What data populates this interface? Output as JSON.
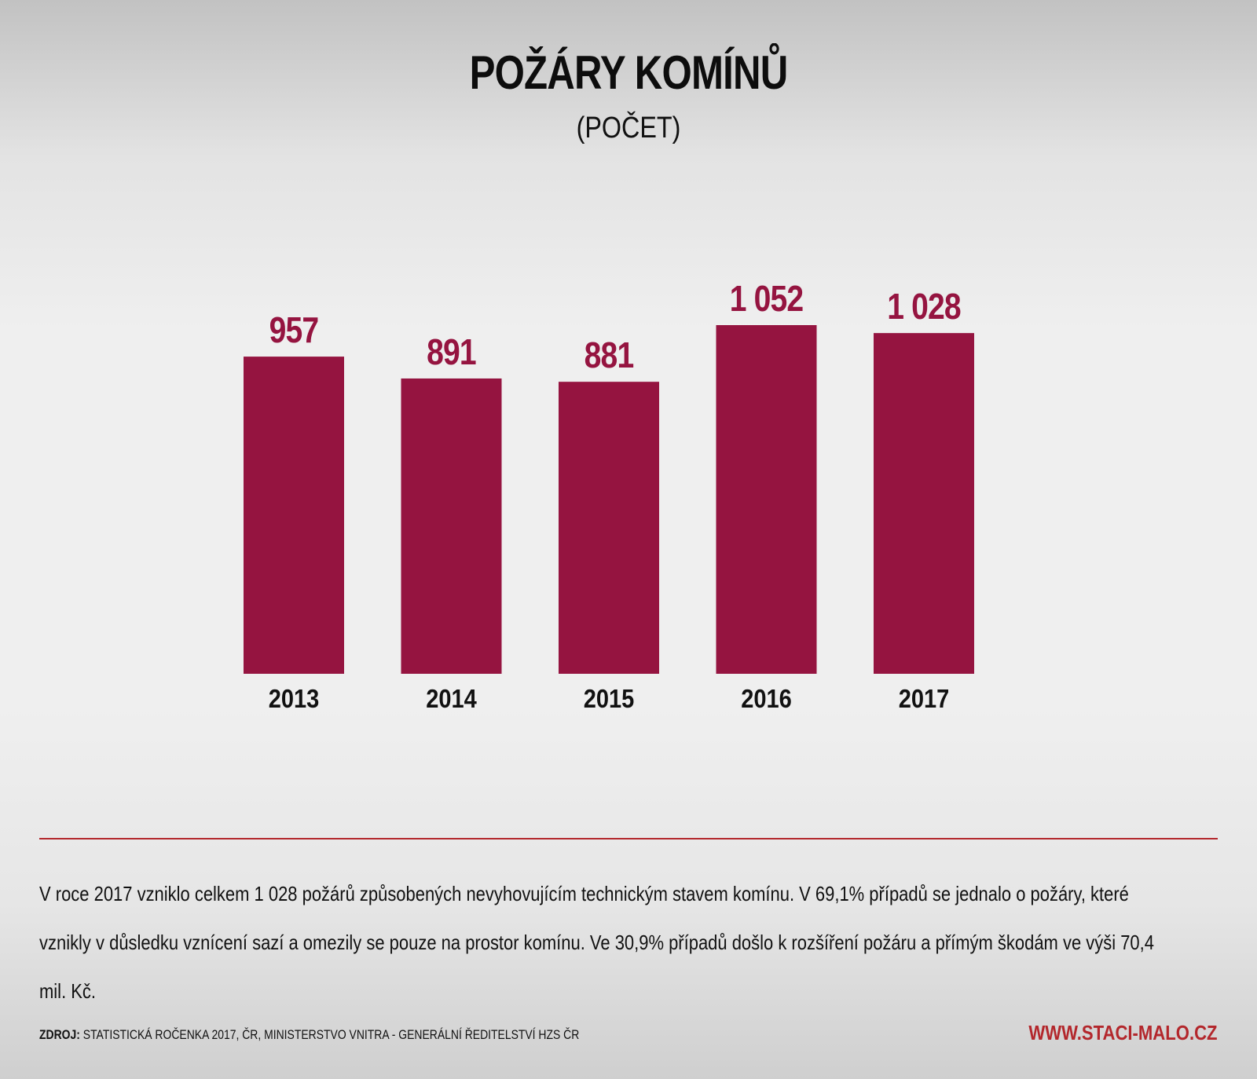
{
  "header": {
    "title": "POŽÁRY KOMÍNŮ",
    "subtitle": "(POČET)"
  },
  "chart_data": {
    "type": "bar",
    "title": "POŽÁRY KOMÍNŮ",
    "subtitle": "(POČET)",
    "categories": [
      "2013",
      "2014",
      "2015",
      "2016",
      "2017"
    ],
    "values": [
      957,
      891,
      881,
      1052,
      1028
    ],
    "value_labels": [
      "957",
      "891",
      "881",
      "1 052",
      "1 028"
    ],
    "xlabel": "",
    "ylabel": "",
    "grid": false,
    "legend": "none",
    "bar_color": "#951440",
    "label_color": "#951440"
  },
  "description": {
    "lines": [
      "V roce 2017 vzniklo celkem 1 028 požárů způsobených nevyhovujícím technickým stavem komínu. V 69,1% případů se jednalo o požáry, které",
      "vznikly v důsledku vznícení sazí a omezily se pouze na prostor komínu. Ve 30,9% případů došlo k rozšíření požáru a přímým škodám ve výši 70,4",
      "mil. Kč."
    ]
  },
  "footer": {
    "source_label": "ZDROJ:",
    "source_text": "STATISTICKÁ ROČENKA 2017, ČR, MINISTERSTVO VNITRA - GENERÁLNÍ ŘEDITELSTVÍ HZS ČR",
    "website": "WWW.STACI-MALO.CZ"
  },
  "colors": {
    "accent": "#b3272c",
    "bar": "#951440",
    "text": "#111111"
  }
}
